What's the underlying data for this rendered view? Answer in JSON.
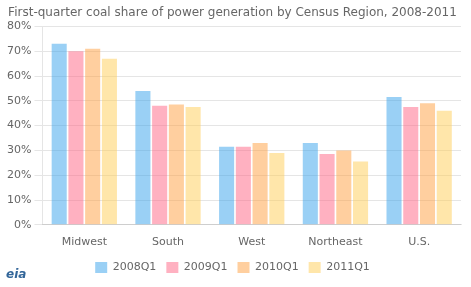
{
  "chart_data": {
    "type": "bar",
    "title": "First-quarter coal share of power generation by Census Region, 2008-2011",
    "categories": [
      "Midwest",
      "South",
      "West",
      "Northeast",
      "U.S."
    ],
    "series": [
      {
        "name": "2008Q1",
        "values": [
          0.73,
          0.54,
          0.315,
          0.33,
          0.515
        ]
      },
      {
        "name": "2009Q1",
        "values": [
          0.7,
          0.48,
          0.315,
          0.285,
          0.475
        ]
      },
      {
        "name": "2010Q1",
        "values": [
          0.71,
          0.485,
          0.33,
          0.3,
          0.49
        ]
      },
      {
        "name": "2011Q1",
        "values": [
          0.67,
          0.475,
          0.29,
          0.255,
          0.46
        ]
      }
    ],
    "ylim": [
      0,
      0.8
    ],
    "yticks": [
      {
        "value": 0,
        "label": "0%"
      },
      {
        "value": 0.1,
        "label": "10%"
      },
      {
        "value": 0.2,
        "label": "20%"
      },
      {
        "value": 0.3,
        "label": "30%"
      },
      {
        "value": 0.4,
        "label": "40%"
      },
      {
        "value": 0.5,
        "label": "50%"
      },
      {
        "value": 0.6,
        "label": "60%"
      },
      {
        "value": 0.7,
        "label": "70%"
      },
      {
        "value": 0.8,
        "label": "80%"
      }
    ],
    "grid": true,
    "legend": "bottom",
    "annotations": [
      "eia"
    ]
  }
}
